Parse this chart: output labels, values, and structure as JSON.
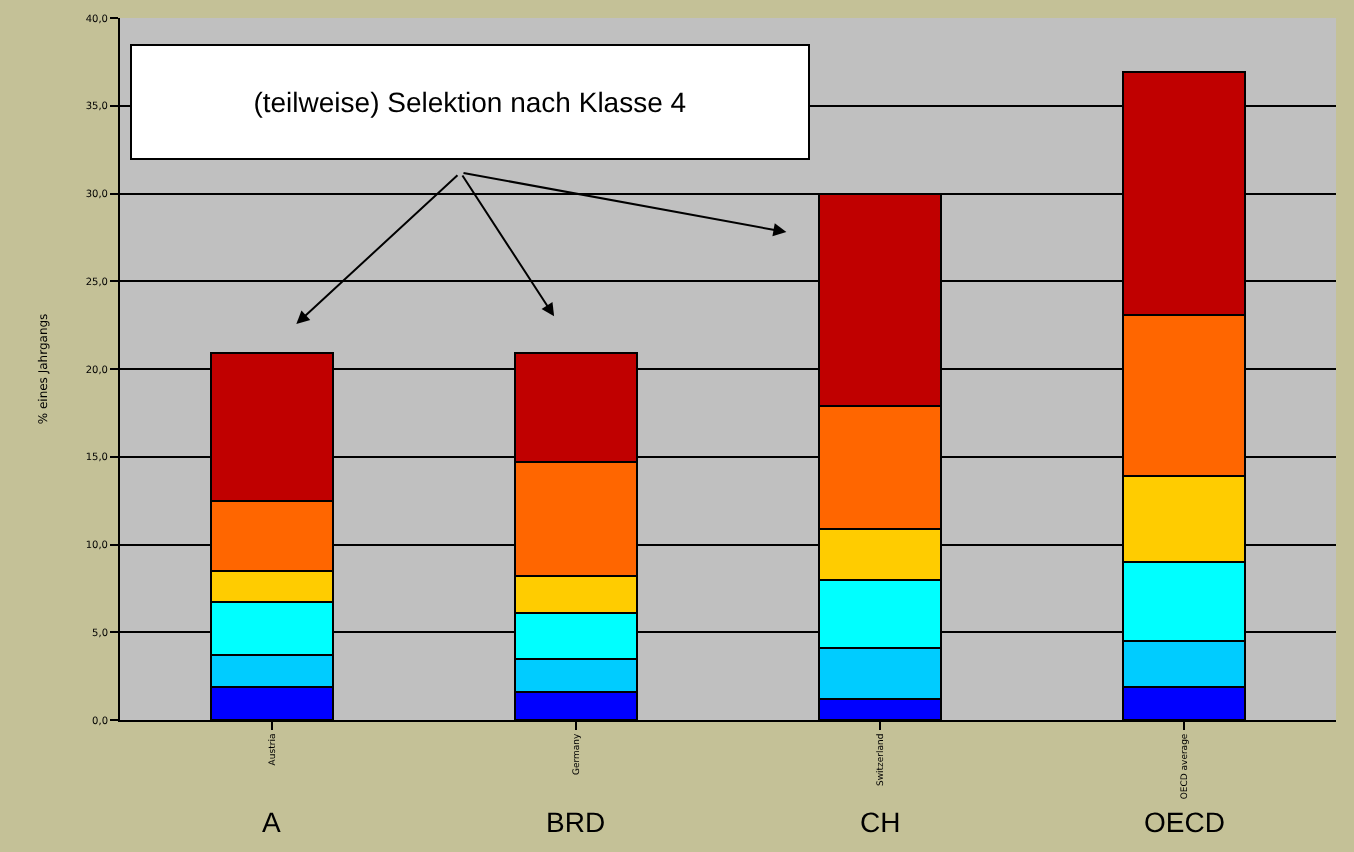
{
  "chart_data": {
    "type": "bar",
    "stacked": true,
    "ylabel": "% eines Jahrgangs",
    "categories": [
      "Austria",
      "Germany",
      "Switzerland",
      "OECD average"
    ],
    "series": [
      {
        "color": "#0000ff",
        "values": [
          1.9,
          1.6,
          1.2,
          1.9
        ]
      },
      {
        "color": "#00ccff",
        "values": [
          1.8,
          1.9,
          2.9,
          2.6
        ]
      },
      {
        "color": "#00ffff",
        "values": [
          3.0,
          2.6,
          3.9,
          4.5
        ]
      },
      {
        "color": "#ffcc00",
        "values": [
          1.8,
          2.1,
          2.9,
          4.9
        ]
      },
      {
        "color": "#ff6600",
        "values": [
          4.0,
          6.5,
          7.0,
          9.2
        ]
      },
      {
        "color": "#c00000",
        "values": [
          8.4,
          6.2,
          12.1,
          13.8
        ]
      }
    ],
    "ylim": [
      0,
      40
    ],
    "yticks": [
      {
        "value": 0,
        "label": "0,0"
      },
      {
        "value": 5,
        "label": "5,0"
      },
      {
        "value": 10,
        "label": "10,0"
      },
      {
        "value": 15,
        "label": "15,0"
      },
      {
        "value": 20,
        "label": "20,0"
      },
      {
        "value": 25,
        "label": "25,0"
      },
      {
        "value": 30,
        "label": "30,0"
      },
      {
        "value": 35,
        "label": "35,0"
      },
      {
        "value": 40,
        "label": "40,0"
      }
    ],
    "grid": "y",
    "annotations": [
      "(teilweise) Selektion nach Klasse 4",
      "A",
      "BRD",
      "CH",
      "OECD"
    ]
  }
}
